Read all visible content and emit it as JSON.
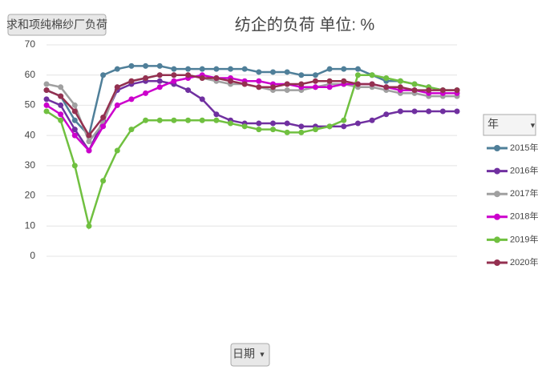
{
  "chart_data": {
    "type": "line",
    "title": "纺企的负荷 单位: %",
    "value_field": "求和项纯棉纱厂负荷",
    "legend_title": "年",
    "x_field": "日期",
    "categories": [
      null,
      null,
      null,
      null,
      null,
      null,
      null,
      null,
      null,
      null,
      null,
      null,
      null,
      null,
      null,
      null,
      null,
      null,
      null,
      null,
      null,
      null,
      null,
      null,
      null,
      null,
      null,
      null,
      null,
      null
    ],
    "ylim": [
      0,
      70
    ],
    "yticks": [
      0,
      10,
      20,
      30,
      40,
      50,
      60,
      70
    ],
    "grid": true,
    "legend": "right",
    "series": [
      {
        "name": "2015年",
        "color": "#4f7f99",
        "values": [
          55,
          53,
          45,
          40,
          60,
          62,
          63,
          63,
          63,
          62,
          62,
          62,
          62,
          62,
          62,
          61,
          61,
          61,
          60,
          60,
          62,
          62,
          62,
          60,
          58,
          58,
          57,
          56,
          55,
          55
        ]
      },
      {
        "name": "2016年",
        "color": "#7030a0",
        "values": [
          52,
          50,
          42,
          35,
          45,
          55,
          57,
          58,
          58,
          57,
          55,
          52,
          47,
          45,
          44,
          44,
          44,
          44,
          43,
          43,
          43,
          43,
          44,
          45,
          47,
          48,
          48,
          48,
          48,
          48
        ]
      },
      {
        "name": "2017年",
        "color": "#a0a0a0",
        "values": [
          57,
          56,
          50,
          38,
          44,
          56,
          58,
          59,
          60,
          60,
          60,
          59,
          58,
          57,
          57,
          56,
          55,
          55,
          55,
          56,
          57,
          57,
          56,
          56,
          55,
          54,
          54,
          53,
          53,
          53
        ]
      },
      {
        "name": "2018年",
        "color": "#cc00cc",
        "values": [
          50,
          47,
          40,
          35,
          43,
          50,
          52,
          54,
          56,
          58,
          59,
          60,
          59,
          59,
          58,
          58,
          57,
          57,
          56,
          56,
          56,
          57,
          57,
          57,
          56,
          55,
          55,
          54,
          54,
          54
        ]
      },
      {
        "name": "2019年",
        "color": "#70c040",
        "values": [
          48,
          45,
          30,
          10,
          25,
          35,
          42,
          45,
          45,
          45,
          45,
          45,
          45,
          44,
          43,
          42,
          42,
          41,
          41,
          42,
          43,
          45,
          60,
          60,
          59,
          58,
          57,
          56,
          55,
          55
        ]
      },
      {
        "name": "2020年",
        "color": "#943050",
        "values": [
          55,
          53,
          48,
          40,
          46,
          56,
          58,
          59,
          60,
          60,
          60,
          59,
          59,
          58,
          57,
          56,
          56,
          57,
          57,
          58,
          58,
          58,
          57,
          57,
          56,
          56,
          55,
          55,
          55,
          55
        ]
      }
    ]
  }
}
